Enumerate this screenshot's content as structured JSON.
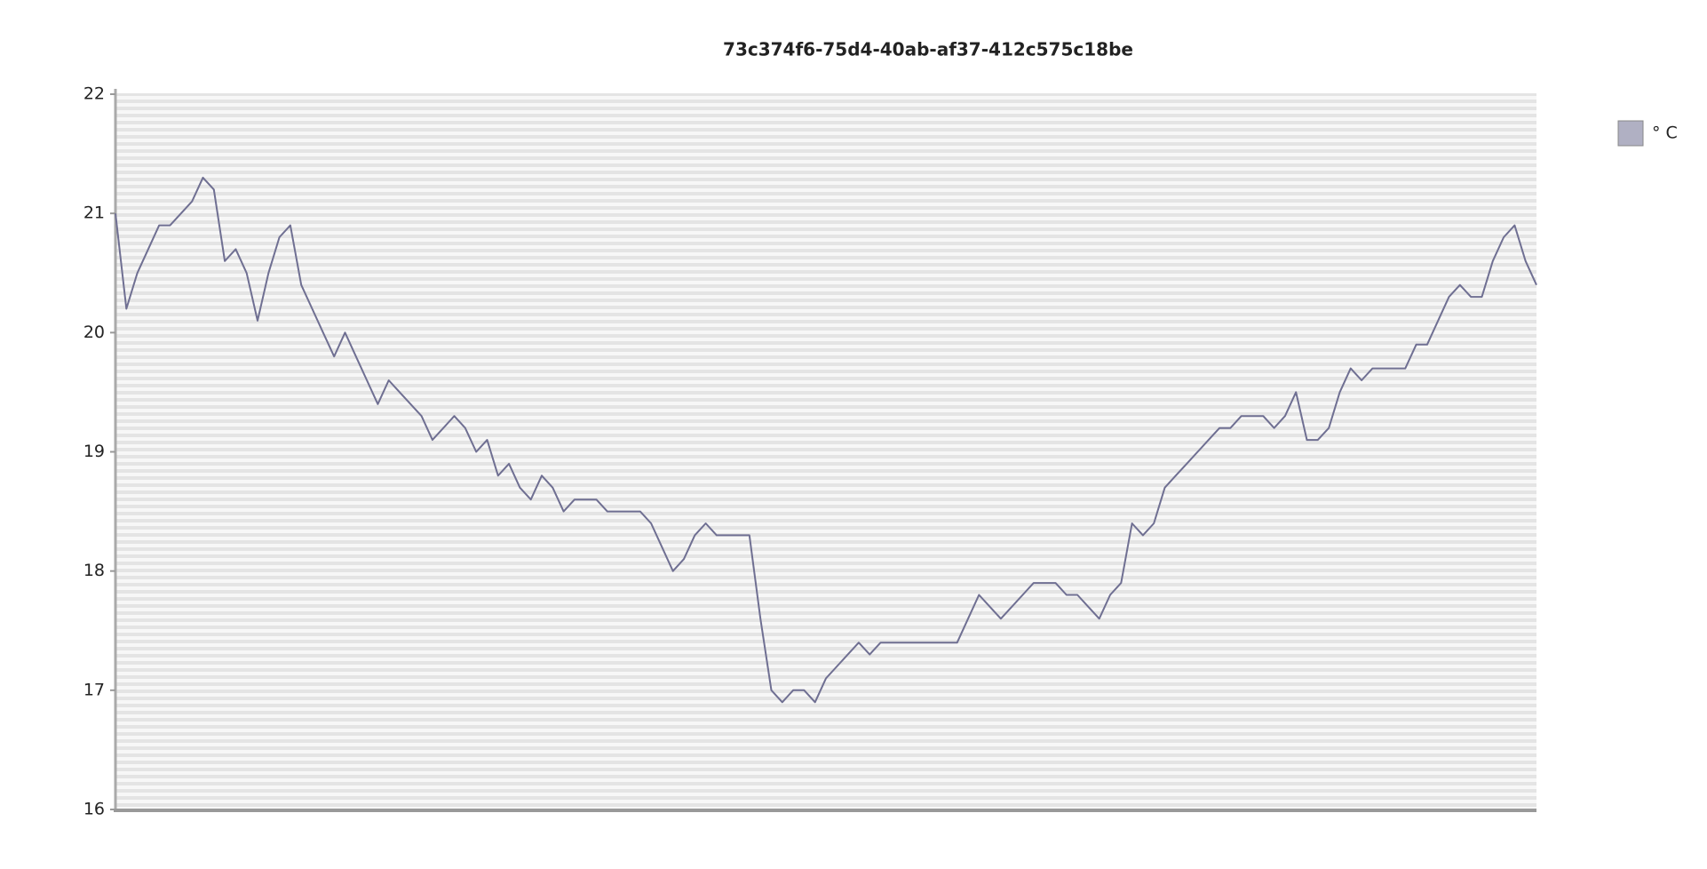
{
  "chart_data": {
    "type": "line",
    "title": "73c374f6-75d4-40ab-af37-412c575c18be",
    "series": [
      {
        "name": "° C",
        "color": "#6f6f92",
        "values": [
          21.0,
          20.2,
          20.5,
          20.7,
          20.9,
          20.9,
          21.0,
          21.1,
          21.3,
          21.2,
          20.6,
          20.7,
          20.5,
          20.1,
          20.5,
          20.8,
          20.9,
          20.4,
          20.2,
          20.0,
          19.8,
          20.0,
          19.8,
          19.6,
          19.4,
          19.6,
          19.5,
          19.4,
          19.3,
          19.1,
          19.2,
          19.3,
          19.2,
          19.0,
          19.1,
          18.8,
          18.9,
          18.7,
          18.6,
          18.8,
          18.7,
          18.5,
          18.6,
          18.6,
          18.6,
          18.5,
          18.5,
          18.5,
          18.5,
          18.4,
          18.2,
          18.0,
          18.1,
          18.3,
          18.4,
          18.3,
          18.3,
          18.3,
          18.3,
          17.6,
          17.0,
          16.9,
          17.0,
          17.0,
          16.9,
          17.1,
          17.2,
          17.3,
          17.4,
          17.3,
          17.4,
          17.4,
          17.4,
          17.4,
          17.4,
          17.4,
          17.4,
          17.4,
          17.6,
          17.8,
          17.7,
          17.6,
          17.7,
          17.8,
          17.9,
          17.9,
          17.9,
          17.8,
          17.8,
          17.7,
          17.6,
          17.8,
          17.9,
          18.4,
          18.3,
          18.4,
          18.7,
          18.8,
          18.9,
          19.0,
          19.1,
          19.2,
          19.2,
          19.3,
          19.3,
          19.3,
          19.2,
          19.3,
          19.5,
          19.1,
          19.1,
          19.2,
          19.5,
          19.7,
          19.6,
          19.7,
          19.7,
          19.7,
          19.7,
          19.9,
          19.9,
          20.1,
          20.3,
          20.4,
          20.3,
          20.3,
          20.6,
          20.8,
          20.9,
          20.6,
          20.4
        ]
      }
    ],
    "ylim": [
      16,
      22
    ],
    "yticks": [
      16,
      17,
      18,
      19,
      20,
      21,
      22
    ],
    "legend": "top-right"
  }
}
